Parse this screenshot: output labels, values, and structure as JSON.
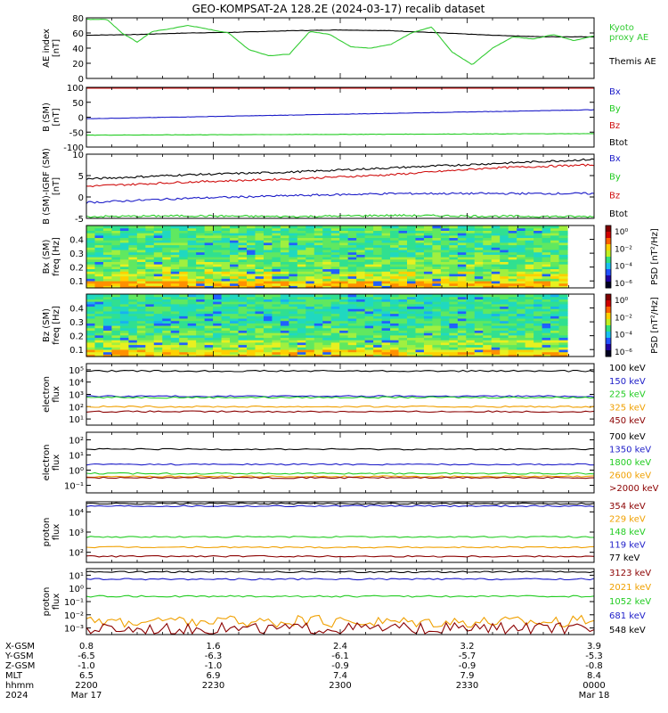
{
  "page": {
    "title": "GEO-KOMPSAT-2A 128.2E (2024-03-17) recalib dataset"
  },
  "colors": {
    "black": "#000000",
    "blue": "#1c1cc8",
    "green": "#22cc22",
    "red": "#d01010",
    "orange": "#f0a000",
    "darkred": "#8b0000",
    "kyoto": "#33cc33"
  },
  "chart_data": [
    {
      "id": "ae",
      "type": "line",
      "ylabel": "AE index\n[nT]",
      "ylim": [
        0,
        80
      ],
      "yticks": [
        "0",
        "20",
        "40",
        "60",
        "80"
      ],
      "legend": [
        {
          "label": "Kyoto\nproxy AE",
          "color": "kyoto"
        },
        {
          "label": "Themis AE",
          "color": "black"
        }
      ],
      "series": [
        {
          "name": "Themis AE",
          "color": "black",
          "x": [
            0,
            0.1,
            0.2,
            0.3,
            0.4,
            0.5,
            0.6,
            0.7,
            0.8,
            0.9,
            1.0
          ],
          "y": [
            57,
            58,
            60,
            61,
            63,
            64,
            63,
            60,
            57,
            55,
            55
          ]
        },
        {
          "name": "Kyoto proxy AE",
          "color": "kyoto",
          "x": [
            0,
            0.04,
            0.07,
            0.1,
            0.13,
            0.16,
            0.2,
            0.24,
            0.28,
            0.32,
            0.36,
            0.4,
            0.44,
            0.48,
            0.52,
            0.56,
            0.6,
            0.64,
            0.68,
            0.72,
            0.76,
            0.8,
            0.84,
            0.88,
            0.92,
            0.96,
            1.0
          ],
          "y": [
            78,
            78,
            60,
            48,
            62,
            65,
            70,
            65,
            60,
            38,
            30,
            32,
            62,
            58,
            42,
            40,
            45,
            60,
            68,
            35,
            18,
            40,
            55,
            52,
            58,
            50,
            56
          ]
        }
      ]
    },
    {
      "id": "b",
      "type": "line",
      "ylabel": "B (SM)\n[nT]",
      "ylim": [
        -100,
        100
      ],
      "yticks": [
        "-100",
        "-50",
        "0",
        "50",
        "100"
      ],
      "legend": [
        {
          "label": "Bx",
          "color": "blue"
        },
        {
          "label": "By",
          "color": "green"
        },
        {
          "label": "Bz",
          "color": "red"
        },
        {
          "label": "Btot",
          "color": "black"
        }
      ],
      "series": [
        {
          "name": "Btot",
          "color": "black",
          "x": [
            0,
            1
          ],
          "y": [
            112,
            116
          ]
        },
        {
          "name": "Bz",
          "color": "red",
          "x": [
            0,
            1
          ],
          "y": [
            105,
            108
          ]
        },
        {
          "name": "Bx",
          "color": "blue",
          "x": [
            0,
            1
          ],
          "y": [
            -5,
            25
          ]
        },
        {
          "name": "By",
          "color": "green",
          "x": [
            0,
            1
          ],
          "y": [
            -60,
            -55
          ]
        }
      ]
    },
    {
      "id": "db",
      "type": "line",
      "ylabel": "B (SM)-IGRF (SM)\n[nT]",
      "ylim": [
        -5,
        10
      ],
      "yticks": [
        "-5",
        "0",
        "5",
        "10"
      ],
      "legend": [
        {
          "label": "Bx",
          "color": "blue"
        },
        {
          "label": "By",
          "color": "green"
        },
        {
          "label": "Bz",
          "color": "red"
        },
        {
          "label": "Btot",
          "color": "black"
        }
      ],
      "series": [
        {
          "name": "Btot",
          "color": "black",
          "x": [
            0,
            0.2,
            0.4,
            0.6,
            0.8,
            1.0
          ],
          "y": [
            4.2,
            5.2,
            5.8,
            6.8,
            7.8,
            8.8
          ]
        },
        {
          "name": "Bz",
          "color": "red",
          "x": [
            0,
            0.2,
            0.4,
            0.6,
            0.8,
            1.0
          ],
          "y": [
            2.5,
            3.5,
            4.2,
            5.2,
            6.8,
            7.5
          ]
        },
        {
          "name": "Bx",
          "color": "blue",
          "x": [
            0,
            0.2,
            0.4,
            0.6,
            0.8,
            1.0
          ],
          "y": [
            -1.3,
            -0.3,
            0.3,
            0.8,
            0.8,
            0.8
          ]
        },
        {
          "name": "By",
          "color": "green",
          "x": [
            0,
            0.2,
            0.4,
            0.6,
            0.8,
            1.0
          ],
          "y": [
            -4.6,
            -4.4,
            -4.6,
            -4.3,
            -4.5,
            -4.6
          ]
        }
      ]
    },
    {
      "id": "bxspec",
      "type": "heatmap",
      "ylabel": "Bx (SM)\nfreq [Hz]",
      "ylim": [
        0.05,
        0.5
      ],
      "yticks": [
        "0.1",
        "0.2",
        "0.3",
        "0.4"
      ],
      "colorbar": {
        "label": "PSD [nT²/Hz]",
        "ticks": [
          "10⁰",
          "10⁻²",
          "10⁻⁴",
          "10⁻⁶"
        ]
      }
    },
    {
      "id": "bzspec",
      "type": "heatmap",
      "ylabel": "Bz (SM)\nfreq [Hz]",
      "ylim": [
        0.05,
        0.5
      ],
      "yticks": [
        "0.1",
        "0.2",
        "0.3",
        "0.4"
      ],
      "colorbar": {
        "label": "PSD [nT²/Hz]",
        "ticks": [
          "10⁰",
          "10⁻²",
          "10⁻⁴",
          "10⁻⁶"
        ]
      }
    },
    {
      "id": "elo",
      "type": "line",
      "ylabel": "electron\nflux",
      "log": true,
      "yticks": [
        "10¹",
        "10²",
        "10³",
        "10⁴",
        "10⁵"
      ],
      "legend": [
        {
          "label": "100 keV",
          "color": "black"
        },
        {
          "label": "150 keV",
          "color": "blue"
        },
        {
          "label": "225 keV",
          "color": "green"
        },
        {
          "label": "325 keV",
          "color": "orange"
        },
        {
          "label": "450 keV",
          "color": "darkred"
        }
      ],
      "series": [
        {
          "name": "100 keV",
          "color": "black",
          "level": 0.88
        },
        {
          "name": "150 keV",
          "color": "blue",
          "level": 0.47
        },
        {
          "name": "225 keV",
          "color": "green",
          "level": 0.45
        },
        {
          "name": "325 keV",
          "color": "orange",
          "level": 0.3
        },
        {
          "name": "450 keV",
          "color": "darkred",
          "level": 0.22
        }
      ]
    },
    {
      "id": "ehi",
      "type": "line",
      "ylabel": "electron\nflux",
      "log": true,
      "yticks": [
        "10⁻¹",
        "10⁰",
        "10¹",
        "10²"
      ],
      "legend": [
        {
          "label": "700 keV",
          "color": "black"
        },
        {
          "label": "1350 keV",
          "color": "blue"
        },
        {
          "label": "1800 keV",
          "color": "green"
        },
        {
          "label": "2600 keV",
          "color": "orange"
        },
        {
          "label": ">2000 keV",
          "color": "darkred"
        }
      ],
      "series": [
        {
          "name": "700 keV",
          "color": "black",
          "level": 0.72
        },
        {
          "name": "1350 keV",
          "color": "blue",
          "level": 0.47
        },
        {
          "name": "1800 keV",
          "color": "green",
          "level": 0.32
        },
        {
          "name": "2600 keV",
          "color": "orange",
          "level": 0.27
        },
        {
          "name": ">2000 keV",
          "color": "darkred",
          "level": 0.25
        }
      ]
    },
    {
      "id": "plo",
      "type": "line",
      "ylabel": "proton\nflux",
      "log": true,
      "yticks": [
        "10²",
        "10³",
        "10⁴"
      ],
      "legend": [
        {
          "label": "354 keV",
          "color": "darkred"
        },
        {
          "label": "229 keV",
          "color": "orange"
        },
        {
          "label": "148 keV",
          "color": "green"
        },
        {
          "label": "119 keV",
          "color": "blue"
        },
        {
          "label": "77 keV",
          "color": "black"
        }
      ],
      "series": [
        {
          "name": "77 keV",
          "color": "black",
          "level": 0.97
        },
        {
          "name": "119 keV",
          "color": "blue",
          "level": 0.93
        },
        {
          "name": "148 keV",
          "color": "green",
          "level": 0.42
        },
        {
          "name": "229 keV",
          "color": "orange",
          "level": 0.25
        },
        {
          "name": "354 keV",
          "color": "darkred",
          "level": 0.1
        }
      ]
    },
    {
      "id": "phi",
      "type": "line",
      "ylabel": "proton\nflux",
      "log": true,
      "yticks": [
        "10⁻³",
        "10⁻²",
        "10⁻¹",
        "10⁰",
        "10¹"
      ],
      "legend": [
        {
          "label": "3123 keV",
          "color": "darkred"
        },
        {
          "label": "2021 keV",
          "color": "orange"
        },
        {
          "label": "1052 keV",
          "color": "green"
        },
        {
          "label": "681 keV",
          "color": "blue"
        },
        {
          "label": "548 keV",
          "color": "black"
        }
      ],
      "series": [
        {
          "name": "548 keV",
          "color": "black",
          "level": 0.95
        },
        {
          "name": "681 keV",
          "color": "blue",
          "level": 0.84
        },
        {
          "name": "1052 keV",
          "color": "green",
          "level": 0.58
        },
        {
          "name": "2021 keV",
          "color": "orange",
          "level": 0.2,
          "noisy": true
        },
        {
          "name": "3123 keV",
          "color": "darkred",
          "level": 0.09,
          "noisy": true
        }
      ]
    }
  ],
  "xaxis": {
    "rows": [
      "X-GSM",
      "Y-GSM",
      "Z-GSM",
      "MLT",
      "hhmm",
      "2024"
    ],
    "ticks": [
      [
        "0.8",
        "-6.5",
        "-1.0",
        "6.5",
        "2200",
        "Mar 17"
      ],
      [
        "1.6",
        "-6.3",
        "-1.0",
        "6.9",
        "2230",
        ""
      ],
      [
        "2.4",
        "-6.1",
        "-0.9",
        "7.4",
        "2300",
        ""
      ],
      [
        "3.2",
        "-5.7",
        "-0.9",
        "7.9",
        "2330",
        ""
      ],
      [
        "3.9",
        "-5.3",
        "-0.8",
        "8.4",
        "0000",
        "Mar 18"
      ]
    ]
  }
}
